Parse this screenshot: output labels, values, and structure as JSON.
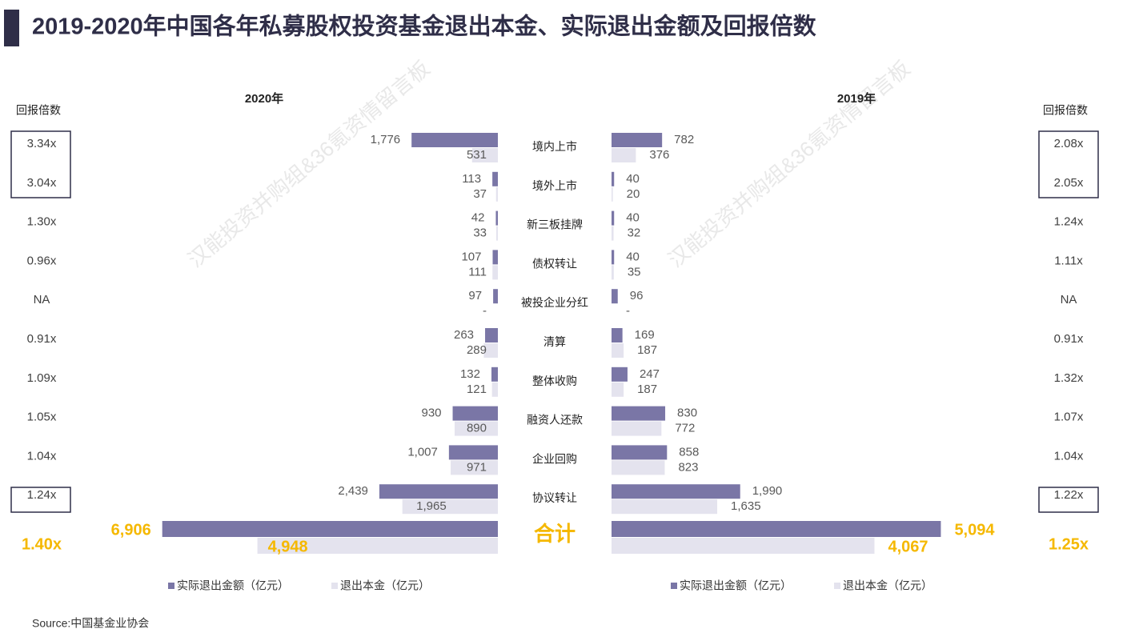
{
  "title": "2019-2020年中国各年私募股权投资基金退出本金、实际退出金额及回报倍数",
  "source": "Source:中国基金业协会",
  "watermark": "汉能投资并购组&36氪资情留言板",
  "chart_data": [
    {
      "type": "bar",
      "title": "2020年",
      "orientation": "horizontal",
      "direction": "left",
      "categories": [
        "境内上市",
        "境外上市",
        "新三板挂牌",
        "债权转让",
        "被投企业分红",
        "清算",
        "整体收购",
        "融资人还款",
        "企业回购",
        "协议转让",
        "合计"
      ],
      "series": [
        {
          "name": "实际退出金额（亿元）",
          "color": "#7a76a6",
          "values": [
            1776,
            113,
            42,
            107,
            97,
            263,
            132,
            930,
            1007,
            2439,
            6906
          ],
          "value_labels": [
            "1,776",
            "113",
            "42",
            "107",
            "97",
            "263",
            "132",
            "930",
            "1,007",
            "2,439",
            "6,906"
          ]
        },
        {
          "name": "退出本金（亿元）",
          "color": "#e4e3ee",
          "values": [
            531,
            37,
            33,
            111,
            null,
            289,
            121,
            890,
            971,
            1965,
            4948
          ],
          "value_labels": [
            "531",
            "37",
            "33",
            "111",
            "-",
            "289",
            "121",
            "890",
            "971",
            "1,965",
            "4,948"
          ]
        }
      ],
      "xlim": [
        0,
        7000
      ],
      "return_header": "回报倍数",
      "return_multiples": [
        "3.34x",
        "3.04x",
        "1.30x",
        "0.96x",
        "NA",
        "0.91x",
        "1.09x",
        "1.05x",
        "1.04x",
        "1.24x",
        "1.40x"
      ]
    },
    {
      "type": "bar",
      "title": "2019年",
      "orientation": "horizontal",
      "direction": "right",
      "series": [
        {
          "name": "实际退出金额（亿元）",
          "color": "#7a76a6",
          "values": [
            782,
            40,
            40,
            40,
            96,
            169,
            247,
            830,
            858,
            1990,
            5094
          ],
          "value_labels": [
            "782",
            "40",
            "40",
            "40",
            "96",
            "169",
            "247",
            "830",
            "858",
            "1,990",
            "5,094"
          ]
        },
        {
          "name": "退出本金（亿元）",
          "color": "#e4e3ee",
          "values": [
            376,
            20,
            32,
            35,
            null,
            187,
            187,
            772,
            823,
            1635,
            4067
          ],
          "value_labels": [
            "376",
            "20",
            "32",
            "35",
            "-",
            "187",
            "187",
            "772",
            "823",
            "1,635",
            "4,067"
          ]
        }
      ],
      "xlim": [
        0,
        5200
      ],
      "return_header": "回报倍数",
      "return_multiples": [
        "2.08x",
        "2.05x",
        "1.24x",
        "1.11x",
        "NA",
        "0.91x",
        "1.32x",
        "1.07x",
        "1.04x",
        "1.22x",
        "1.25x"
      ]
    }
  ]
}
